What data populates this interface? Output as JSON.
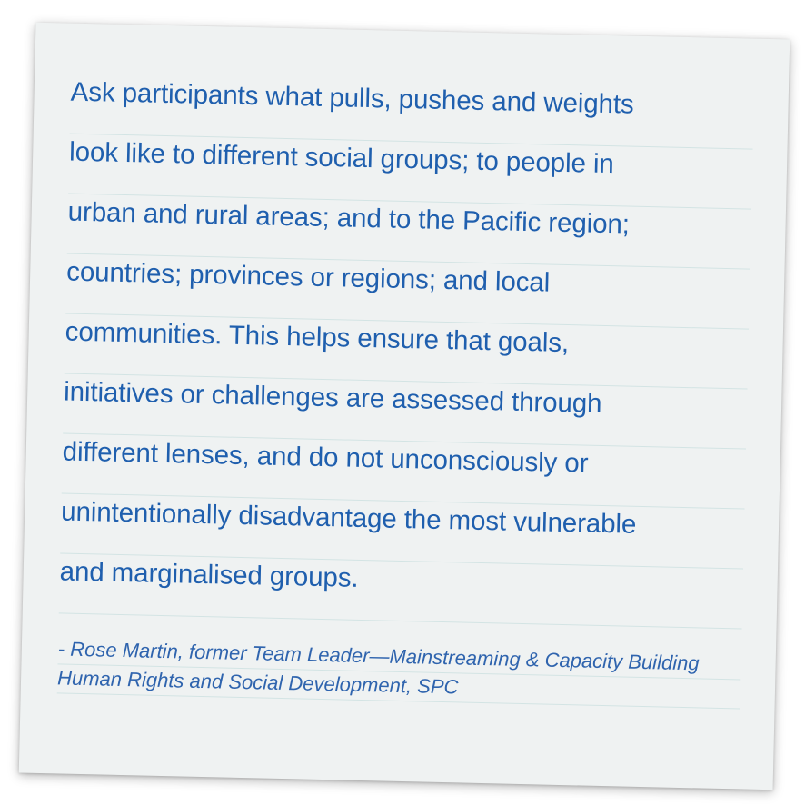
{
  "quote": {
    "lines": [
      "Ask participants what pulls, pushes and weights",
      "look like to different social groups; to people in",
      "urban and rural areas; and to the Pacific region;",
      "countries; provinces or regions; and local",
      "communities. This helps ensure that goals,",
      "initiatives or challenges are assessed through",
      "different lenses, and do not unconsciously or",
      "unintentionally disadvantage the most vulnerable",
      "and marginalised groups."
    ]
  },
  "attribution": {
    "lines": [
      "- Rose Martin, former Team Leader—Mainstreaming & Capacity Building",
      "Human Rights and Social Development, SPC"
    ]
  }
}
